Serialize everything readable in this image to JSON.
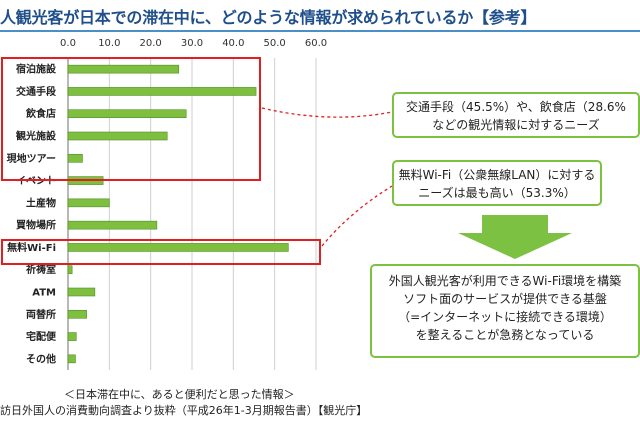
{
  "header": {
    "title": "人観光客が日本での滞在中に、どのような情報が求められているか【参考】"
  },
  "chart_data": {
    "type": "bar",
    "orientation": "horizontal",
    "categories": [
      "宿泊施設",
      "交通手段",
      "飲食店",
      "観光施設",
      "現地ツアー",
      "イベント",
      "土産物",
      "買物場所",
      "無料Wi-Fi",
      "祈祷室",
      "ATM",
      "両替所",
      "宅配便",
      "その他"
    ],
    "values": [
      26.8,
      45.5,
      28.6,
      24.0,
      3.5,
      8.5,
      10.0,
      21.5,
      53.3,
      1.0,
      6.5,
      4.5,
      2.0,
      1.8
    ],
    "xlim": [
      0,
      60
    ],
    "ticks": [
      "0.0",
      "10.0",
      "20.0",
      "30.0",
      "40.0",
      "50.0",
      "60.0"
    ],
    "grid": true,
    "bar_color": "#7fbf3f"
  },
  "callouts": {
    "box1": [
      "交通手段（45.5%）や、飲食店（28.6%",
      "などの観光情報に対するニーズ"
    ],
    "box2": [
      "無料Wi-Fi（公衆無線LAN）に対する",
      "ニーズは最も高い（53.3%）"
    ],
    "box3": [
      "外国人観光客が利用できるWi-Fi環境を構築",
      "ソフト面のサービスが提供できる基盤",
      "（=インターネットに接続できる環境）",
      "を整えることが急務となっている"
    ]
  },
  "footer": {
    "caption1": "＜日本滞在中に、あると便利だと思った情報＞",
    "caption2": "訪日外国人の消費動向調査より抜粋（平成26年1-3月期報告書）【観光庁】"
  }
}
